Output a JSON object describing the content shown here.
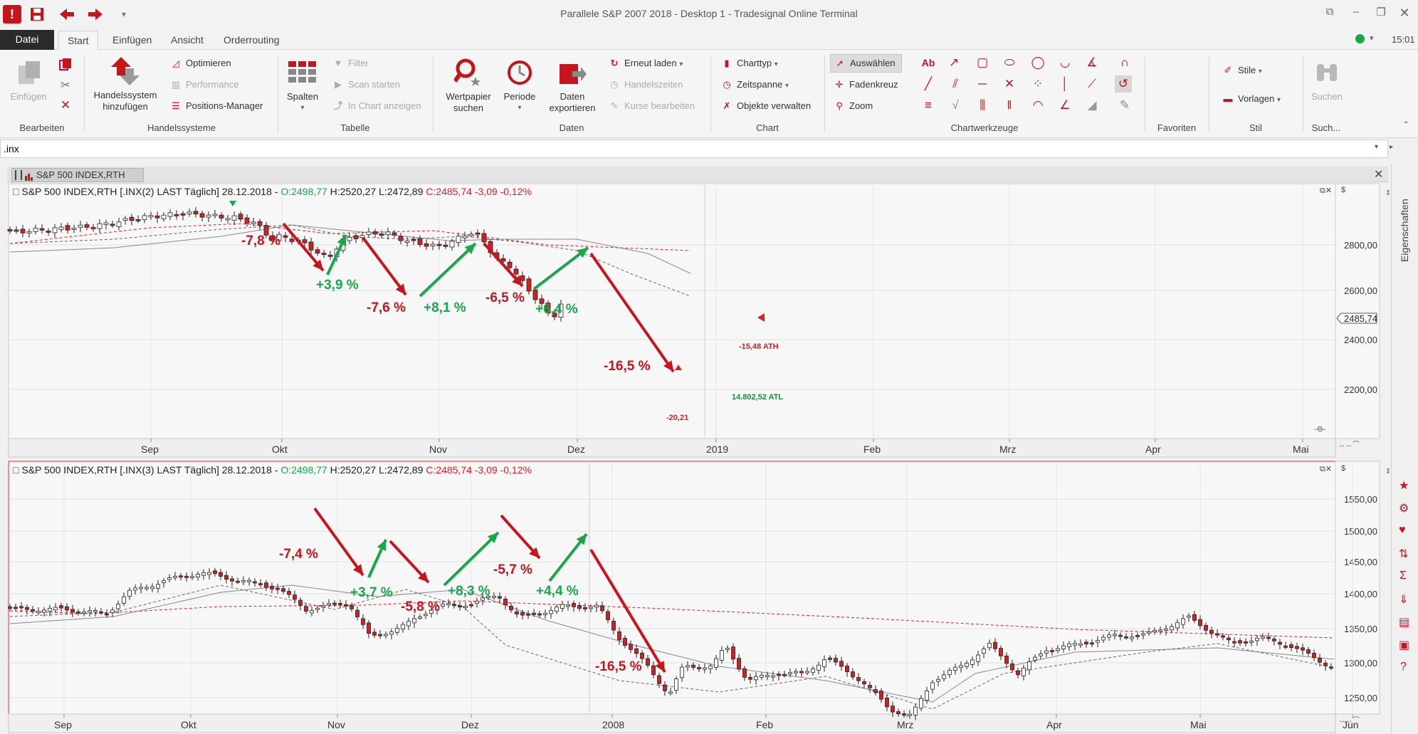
{
  "app": {
    "title": "Parallele S&P 2007 2018 - Desktop 1 - Tradesignal Online Terminal",
    "clock": "15:01"
  },
  "menu": {
    "tabs": [
      "Datei",
      "Start",
      "Einfügen",
      "Ansicht",
      "Orderrouting"
    ]
  },
  "ribbon": {
    "bearbeiten": {
      "einfuegen": "Einfügen",
      "group": "Bearbeiten"
    },
    "handelssysteme": {
      "add": "Handelssystem hinzufügen",
      "optimieren": "Optimieren",
      "performance": "Performance",
      "positions": "Positions-Manager",
      "group": "Handelssysteme"
    },
    "tabelle": {
      "spalten": "Spalten",
      "filter": "Filter",
      "scan": "Scan starten",
      "inchart": "In Chart anzeigen",
      "group": "Tabelle"
    },
    "daten": {
      "wertpapier": "Wertpapier suchen",
      "periode": "Periode",
      "exportieren": "Daten exportieren",
      "erneut": "Erneut laden",
      "handelszeiten": "Handelszeiten",
      "kurse": "Kurse bearbeiten",
      "group": "Daten"
    },
    "chart": {
      "charttyp": "Charttyp",
      "zeitspanne": "Zeitspanne",
      "objekte": "Objekte verwalten",
      "group": "Chart"
    },
    "tools": {
      "auswaehlen": "Auswählen",
      "fadenkreuz": "Fadenkreuz",
      "zoom": "Zoom",
      "group": "Chartwerkzeuge"
    },
    "favoriten": {
      "group": "Favoriten"
    },
    "stil": {
      "stile": "Stile",
      "vorlagen": "Vorlagen",
      "group": "Stil"
    },
    "suche": {
      "suchen": "Suchen",
      "group": "Such..."
    }
  },
  "symbol": {
    "value": ".inx"
  },
  "charttab": {
    "label": "S&P 500 INDEX,RTH"
  },
  "sidebar": {
    "label": "Eigenschaften"
  },
  "chart1": {
    "name": "S&P 500 INDEX,RTH [.INX(2) LAST Täglich]",
    "date": "28.12.2018",
    "open": "O:2498,77",
    "high": "H:2520,27",
    "low": "L:2472,89",
    "close": "C:2485,74 -3,09 -0,12%",
    "currency": "$",
    "last_price": "2485,74",
    "y_ticks": [
      "2800,00",
      "2600,00",
      "2400,00",
      "2200,00"
    ],
    "x_ticks": [
      "Sep",
      "Okt",
      "Nov",
      "Dez",
      "2019",
      "Feb",
      "Mrz",
      "Apr",
      "Mai"
    ],
    "annotations": [
      "-7,8 %",
      "+3,9 %",
      "-7,6 %",
      "+8,1 %",
      "-6,5 %",
      "+6,4 %",
      "-16,5 %"
    ],
    "ath": "-15,48 ATH",
    "atl": "14.802,52 ATL",
    "low_label": "-20,21"
  },
  "chart2": {
    "name": "S&P 500 INDEX,RTH [.INX(3) LAST Täglich]",
    "date": "28.12.2018",
    "open": "O:2498,77",
    "high": "H:2520,27",
    "low": "L:2472,89",
    "close": "C:2485,74 -3,09 -0,12%",
    "currency": "$",
    "y_ticks": [
      "1550,00",
      "1500,00",
      "1450,00",
      "1400,00",
      "1350,00",
      "1300,00",
      "1250,00"
    ],
    "x_ticks": [
      "Sep",
      "Okt",
      "Nov",
      "Dez",
      "2008",
      "Feb",
      "Mrz",
      "Apr",
      "Mai",
      "Jun"
    ],
    "annotations": [
      "-7,4 %",
      "+3,7 %",
      "-5,8 %",
      "+8,3 %",
      "-5,7 %",
      "+4,4 %",
      "-16,5 %"
    ]
  },
  "colors": {
    "red": "#c4161c",
    "green": "#1aa64a",
    "up_candle": "#ffffff",
    "down_candle": "#d02020"
  }
}
